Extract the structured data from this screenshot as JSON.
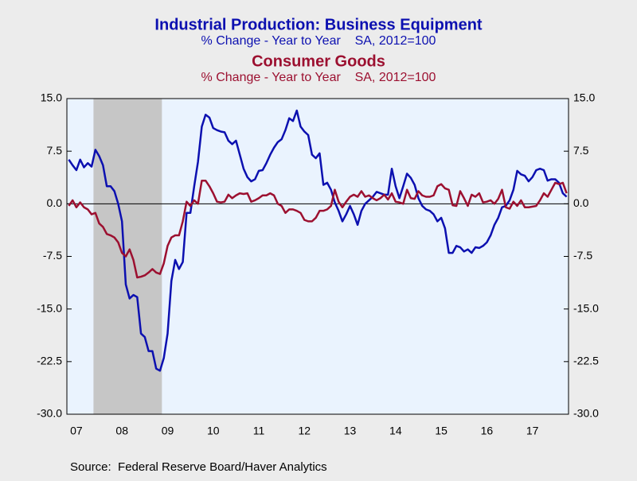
{
  "chart_data": {
    "type": "line",
    "source": "Source:  Federal Reserve Board/Haver Analytics",
    "categories": [
      null,
      null,
      "07",
      null,
      null,
      null,
      null,
      null,
      null,
      null,
      null,
      null,
      null,
      null,
      "08",
      null,
      null,
      null,
      null,
      null,
      null,
      null,
      null,
      null,
      null,
      null,
      "09",
      null,
      null,
      null,
      null,
      null,
      null,
      null,
      null,
      null,
      null,
      null,
      "10",
      null,
      null,
      null,
      null,
      null,
      null,
      null,
      null,
      null,
      null,
      null,
      "11",
      null,
      null,
      null,
      null,
      null,
      null,
      null,
      null,
      null,
      null,
      null,
      "12",
      null,
      null,
      null,
      null,
      null,
      null,
      null,
      null,
      null,
      null,
      null,
      "13",
      null,
      null,
      null,
      null,
      null,
      null,
      null,
      null,
      null,
      null,
      null,
      "14",
      null,
      null,
      null,
      null,
      null,
      null,
      null,
      null,
      null,
      null,
      null,
      "15",
      null,
      null,
      null,
      null,
      null,
      null,
      null,
      null,
      null,
      null,
      null,
      "16",
      null,
      null,
      null,
      null,
      null,
      null,
      null,
      null,
      null,
      null,
      null,
      "17",
      null,
      null,
      null,
      null,
      null,
      null,
      null,
      null,
      null
    ],
    "series": [
      {
        "name": "Industrial Production: Business Equipment",
        "subtitle": "% Change - Year to Year    SA, 2012=100",
        "color": "#0c10b0",
        "values": [
          6.3,
          5.5,
          4.8,
          6.3,
          5.2,
          5.8,
          5.3,
          7.7,
          6.8,
          5.5,
          2.5,
          2.5,
          1.8,
          0,
          -2.5,
          -11.5,
          -13.5,
          -13,
          -13.3,
          -18.5,
          -19,
          -21,
          -21,
          -23.5,
          -23.8,
          -22,
          -18.5,
          -11,
          -8,
          -9.3,
          -8.3,
          -1.3,
          -1.3,
          2.5,
          6,
          11,
          12.7,
          12.3,
          10.8,
          10.5,
          10.3,
          10.2,
          9,
          8.5,
          9,
          7,
          5,
          3.8,
          3.2,
          3.5,
          4.7,
          4.8,
          5.8,
          7,
          8,
          8.8,
          9.2,
          10.5,
          12.2,
          11.8,
          13.3,
          11,
          10.3,
          9.8,
          7,
          6.5,
          7.2,
          2.7,
          3,
          2,
          0.2,
          -1,
          -2.5,
          -1.5,
          -0.3,
          -1.5,
          -3,
          -1,
          0,
          0.5,
          1,
          1.7,
          1.5,
          1.3,
          1.3,
          5,
          2.5,
          0.8,
          2.5,
          4.3,
          3.7,
          2.7,
          0.8,
          -0.3,
          -0.8,
          -1,
          -1.5,
          -2.5,
          -2,
          -3.5,
          -7,
          -7,
          -6,
          -6.2,
          -6.8,
          -6.5,
          -7,
          -6.2,
          -6.3,
          -6,
          -5.5,
          -4.5,
          -3,
          -2,
          -0.5,
          -0.3,
          0.5,
          2,
          4.7,
          4.2,
          4,
          3.2,
          3.8,
          4.8,
          5,
          4.8,
          3.3,
          3.5,
          3.5,
          3,
          1.5,
          1
        ]
      },
      {
        "name": "Consumer Goods",
        "subtitle": "% Change - Year to Year    SA, 2012=100",
        "color": "#9c1030",
        "values": [
          -0.3,
          0.5,
          -0.5,
          0.2,
          -0.5,
          -0.8,
          -1.5,
          -1.3,
          -2.8,
          -3.3,
          -4.3,
          -4.5,
          -4.8,
          -5.5,
          -7,
          -7.5,
          -6.5,
          -8,
          -10.5,
          -10.4,
          -10.2,
          -9.8,
          -9.3,
          -9.8,
          -10,
          -8.5,
          -6,
          -4.8,
          -4.5,
          -4.5,
          -2.5,
          0.3,
          -0.3,
          0.5,
          0,
          3.3,
          3.3,
          2.5,
          1.5,
          0.3,
          0.2,
          0.3,
          1.3,
          0.8,
          1.2,
          1.5,
          1.4,
          1.5,
          0.3,
          0.5,
          0.8,
          1.2,
          1.2,
          1.5,
          1.2,
          0,
          -0.3,
          -1.3,
          -0.8,
          -0.8,
          -1,
          -1.3,
          -2.3,
          -2.5,
          -2.5,
          -2,
          -1,
          -1,
          -0.8,
          -0.3,
          2,
          0.3,
          -0.5,
          0.3,
          1,
          1.3,
          1,
          1.8,
          1,
          1.2,
          0.8,
          0.5,
          0.8,
          1.3,
          0.6,
          1.5,
          0.3,
          0.2,
          0,
          2,
          0.8,
          0.7,
          1.8,
          1.2,
          1,
          1,
          1.2,
          2.5,
          2.8,
          2.2,
          2,
          -0.2,
          -0.3,
          1.8,
          0.8,
          -0.3,
          1.3,
          1,
          1.5,
          0.2,
          0.3,
          0.5,
          0,
          0.7,
          2,
          -0.5,
          -0.7,
          0.3,
          -0.3,
          0.5,
          -0.5,
          -0.5,
          -0.4,
          -0.3,
          0.5,
          1.5,
          1,
          2,
          3,
          2.8,
          3,
          1.5
        ]
      }
    ],
    "shaded_ranges": [
      [
        7,
        24
      ]
    ],
    "shade_color": "#c6c6c6",
    "plot_color": "#eaf3fe",
    "ylim": [
      -30,
      15
    ],
    "yticks": [
      {
        "value": 15,
        "label": "15.0"
      },
      7.5,
      {
        "value": 0,
        "label": "0.0"
      },
      -7.5,
      {
        "value": -15,
        "label": "-15.0"
      },
      -22.5,
      {
        "value": -30,
        "label": "-30.0"
      }
    ],
    "y2lim": [
      -30,
      15
    ],
    "y2ticks": [
      {
        "value": 15,
        "label": "15.0"
      },
      7.5,
      {
        "value": 0,
        "label": "0.0"
      },
      -7.5,
      {
        "value": -15,
        "label": "-15.0"
      },
      -22.5,
      {
        "value": -30,
        "label": "-30.0"
      }
    ]
  }
}
